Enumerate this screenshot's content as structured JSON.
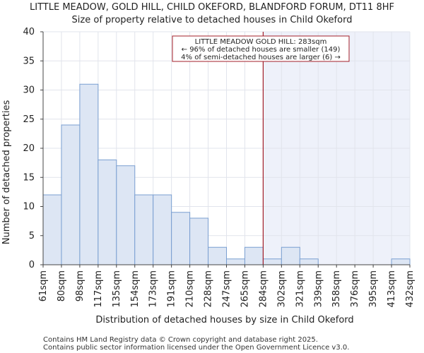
{
  "chart_data": {
    "type": "bar",
    "title": "LITTLE MEADOW, GOLD HILL, CHILD OKEFORD, BLANDFORD FORUM, DT11 8HF",
    "subtitle": "Size of property relative to detached houses in Child Okeford",
    "xlabel": "Distribution of detached houses by size in Child Okeford",
    "ylabel": "Number of detached properties",
    "x_tick_labels": [
      "61sqm",
      "80sqm",
      "98sqm",
      "117sqm",
      "135sqm",
      "154sqm",
      "173sqm",
      "191sqm",
      "210sqm",
      "228sqm",
      "247sqm",
      "265sqm",
      "284sqm",
      "302sqm",
      "321sqm",
      "339sqm",
      "358sqm",
      "376sqm",
      "395sqm",
      "413sqm",
      "432sqm"
    ],
    "values": [
      12,
      24,
      31,
      18,
      17,
      12,
      12,
      9,
      8,
      3,
      1,
      3,
      1,
      3,
      1,
      0,
      0,
      0,
      0,
      1
    ],
    "ylim": [
      0,
      40
    ],
    "y_ticks": [
      0,
      5,
      10,
      15,
      20,
      25,
      30,
      35,
      40
    ],
    "grid": true,
    "marker_bin_position": 12,
    "annotation": {
      "line1": "LITTLE MEADOW GOLD HILL: 283sqm",
      "line2": "← 96% of detached houses are smaller (149)",
      "line3": "4% of semi-detached houses are larger (6) →"
    },
    "colors": {
      "bar_fill": "#dde6f4",
      "bar_stroke": "#7a9fd1",
      "marker_line": "#a31f2a",
      "highlight_region": "#eef1fa",
      "grid": "#e1e4ec",
      "axis": "#444444"
    }
  },
  "footer": {
    "line1": "Contains HM Land Registry data © Crown copyright and database right 2025.",
    "line2": "Contains public sector information licensed under the Open Government Licence v3.0."
  }
}
